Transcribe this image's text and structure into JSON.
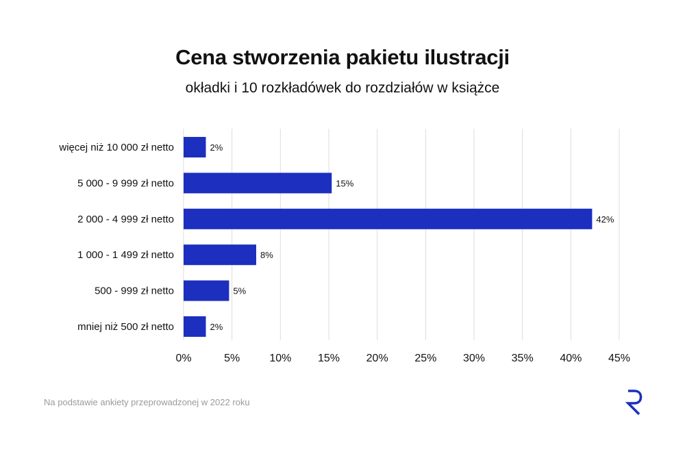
{
  "header": {
    "title": "Cena stworzenia pakietu ilustracji",
    "subtitle": "okładki i 10 rozkładówek do rozdziałów w książce"
  },
  "footer": {
    "note": "Na podstawie ankiety przeprowadzonej w 2022 roku"
  },
  "colors": {
    "bar": "#1c2fbf",
    "grid": "#dcdcdc",
    "text": "#111111",
    "logo": "#1c2fbf"
  },
  "logo": {
    "icon": "letter-r-logo",
    "text": "R"
  },
  "chart_data": {
    "type": "bar",
    "orientation": "horizontal",
    "categories": [
      "więcej niż 10 000 zł netto",
      "5 000 - 9 999 zł netto",
      "2 000 - 4 999 zł netto",
      "1 000 - 1 499 zł netto",
      "500 - 999 zł netto",
      "mniej niż 500 zł netto"
    ],
    "values": [
      2.3,
      15.3,
      42.2,
      7.5,
      4.7,
      2.3
    ],
    "data_labels": [
      "2%",
      "15%",
      "42%",
      "8%",
      "5%",
      "2%"
    ],
    "xlim": [
      0,
      45
    ],
    "x_ticks": [
      0,
      5,
      10,
      15,
      20,
      25,
      30,
      35,
      40,
      45
    ],
    "x_tick_labels": [
      "0%",
      "5%",
      "10%",
      "15%",
      "20%",
      "25%",
      "30%",
      "35%",
      "40%",
      "45%"
    ],
    "grid": true,
    "legend": false
  }
}
